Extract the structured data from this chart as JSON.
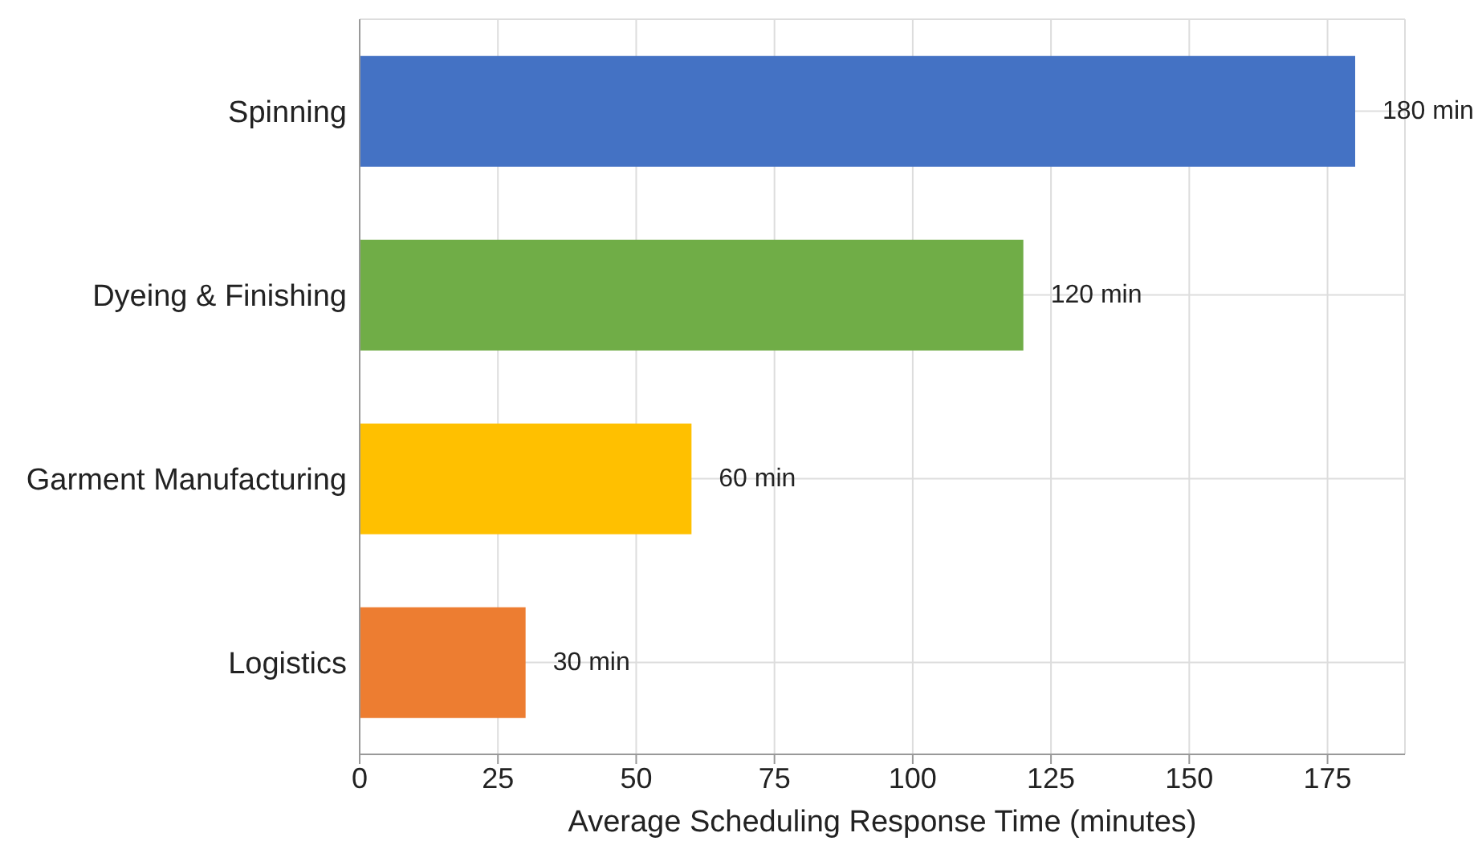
{
  "chart_data": {
    "type": "bar",
    "orientation": "horizontal",
    "xlabel": "Average Scheduling Response Time (minutes)",
    "categories": [
      "Spinning",
      "Dyeing & Finishing",
      "Garment Manufacturing",
      "Logistics"
    ],
    "values": [
      180,
      120,
      60,
      30
    ],
    "colors": [
      "#4472c4",
      "#70ad47",
      "#ffc000",
      "#ed7d31"
    ],
    "value_labels": [
      "180 min",
      "120 min",
      "60 min",
      "30 min"
    ],
    "xlim": [
      0,
      189
    ],
    "xticks": [
      0,
      25,
      50,
      75,
      100,
      125,
      150,
      175
    ],
    "grid": true
  }
}
